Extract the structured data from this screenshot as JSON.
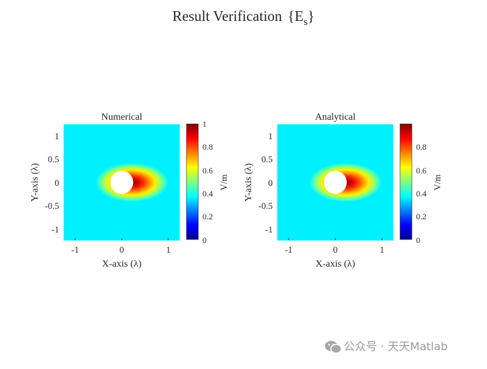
{
  "title_main": "Result Verification",
  "title_field": "{E",
  "title_sub": "s",
  "title_close": "}",
  "watermark": "公众号 · 天天Matlab",
  "chart_data": [
    {
      "type": "heatmap",
      "title": "Numerical",
      "xlabel": "X-axis (λ)",
      "ylabel": "Y-axis (λ)",
      "xticks": [
        -1,
        0,
        1
      ],
      "yticks": [
        1,
        0.5,
        0,
        -0.5,
        -1
      ],
      "xlim": [
        -1.25,
        1.25
      ],
      "ylim": [
        -1.25,
        1.25
      ],
      "colorbar": {
        "label": "V/m",
        "ticks": [
          0,
          0.2,
          0.4,
          0.6,
          0.8,
          1
        ],
        "range": [
          0,
          1
        ]
      },
      "colormap": "jet",
      "cylinder_center": [
        0,
        0
      ],
      "cylinder_radius": 0.25
    },
    {
      "type": "heatmap",
      "title": "Analytical",
      "xlabel": "X-axis (λ)",
      "ylabel": "Y-axis (λ)",
      "xticks": [
        -1,
        0,
        1
      ],
      "yticks": [
        1,
        0.5,
        0,
        -0.5,
        -1
      ],
      "xlim": [
        -1.25,
        1.25
      ],
      "ylim": [
        -1.25,
        1.25
      ],
      "colorbar": {
        "label": "V/m",
        "ticks": [
          0,
          0.2,
          0.4,
          0.6,
          0.8
        ],
        "range": [
          0,
          1
        ]
      },
      "colormap": "jet",
      "cylinder_center": [
        0,
        0
      ],
      "cylinder_radius": 0.25
    }
  ]
}
